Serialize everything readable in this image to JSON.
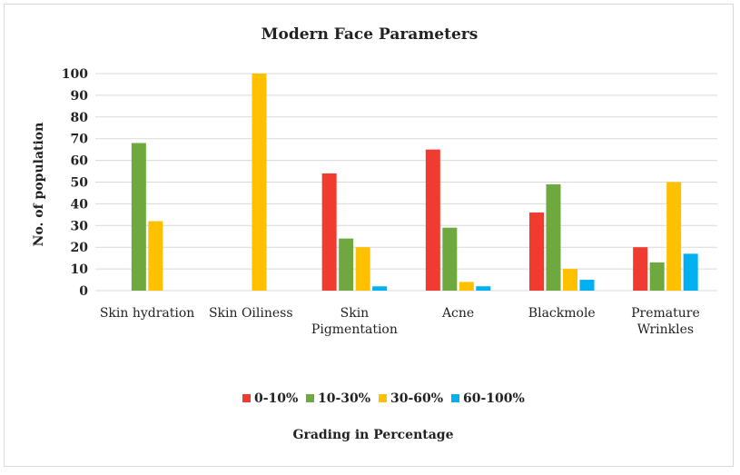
{
  "chart_data": {
    "type": "bar",
    "title": "Modern Face Parameters",
    "xlabel": "Grading in Percentage",
    "ylabel": "No. of population",
    "ylim": [
      0,
      100
    ],
    "yticks": [
      0,
      10,
      20,
      30,
      40,
      50,
      60,
      70,
      80,
      90,
      100
    ],
    "grid": true,
    "legend_position": "bottom",
    "categories": [
      [
        "Skin hydration"
      ],
      [
        "Skin Oiliness"
      ],
      [
        "Skin",
        "Pigmentation"
      ],
      [
        "Acne"
      ],
      [
        "Blackmole"
      ],
      [
        "Premature",
        "Wrinkles"
      ]
    ],
    "series": [
      {
        "name": "0-10%",
        "color": "#f03c30",
        "values": [
          0,
          0,
          54,
          65,
          36,
          20
        ]
      },
      {
        "name": "10-30%",
        "color": "#6fa83e",
        "values": [
          68,
          0,
          24,
          29,
          49,
          13
        ]
      },
      {
        "name": "30-60%",
        "color": "#ffc000",
        "values": [
          32,
          100,
          20,
          4,
          10,
          50
        ]
      },
      {
        "name": "60-100%",
        "color": "#00b0f0",
        "values": [
          0,
          0,
          2,
          2,
          5,
          17
        ]
      }
    ]
  }
}
